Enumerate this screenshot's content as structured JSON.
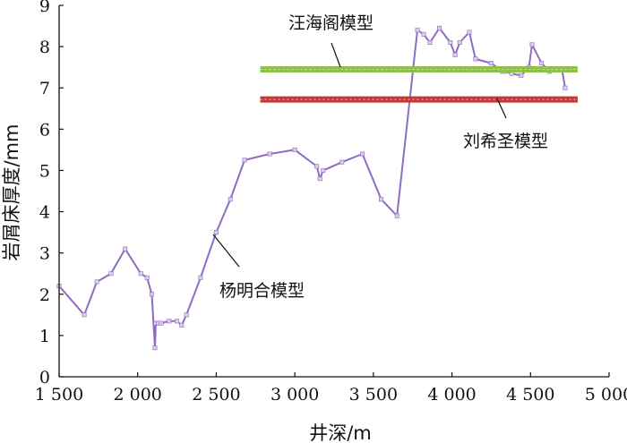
{
  "chart_data": {
    "type": "line",
    "title": "",
    "xlabel": "井深/m",
    "ylabel": "岩屑床厚度/mm",
    "xlim": [
      1500,
      5000
    ],
    "ylim": [
      0,
      9
    ],
    "grid": false,
    "x_ticks": [
      1500,
      2000,
      2500,
      3000,
      3500,
      4000,
      4500,
      5000
    ],
    "x_tick_labels": [
      "1 500",
      "2 000",
      "2 500",
      "3 000",
      "3 500",
      "4 000",
      "4 500",
      "5 000"
    ],
    "y_ticks": [
      0,
      1,
      2,
      3,
      4,
      5,
      6,
      7,
      8,
      9
    ],
    "y_tick_labels": [
      "0",
      "1",
      "2",
      "3",
      "4",
      "5",
      "6",
      "7",
      "8",
      "9"
    ],
    "series": [
      {
        "name": "杨明合模型",
        "color": "#8e6cc0",
        "x": [
          1500,
          1660,
          1740,
          1830,
          1920,
          2020,
          2060,
          2090,
          2110,
          2115,
          2130,
          2150,
          2200,
          2250,
          2280,
          2310,
          2400,
          2500,
          2590,
          2680,
          2840,
          3000,
          3140,
          3160,
          3180,
          3300,
          3430,
          3550,
          3650,
          3780,
          3820,
          3860,
          3920,
          3990,
          4020,
          4050,
          4110,
          4150,
          4250,
          4320,
          4340,
          4380,
          4440,
          4490,
          4510,
          4570,
          4620,
          4700,
          4720
        ],
        "y": [
          2.2,
          1.5,
          2.3,
          2.5,
          3.1,
          2.5,
          2.4,
          2.0,
          0.7,
          1.3,
          1.3,
          1.3,
          1.35,
          1.35,
          1.25,
          1.5,
          2.4,
          3.5,
          4.3,
          5.25,
          5.4,
          5.5,
          5.1,
          4.8,
          5.0,
          5.2,
          5.4,
          4.3,
          3.9,
          8.4,
          8.3,
          8.1,
          8.45,
          8.1,
          7.8,
          8.1,
          8.35,
          7.7,
          7.6,
          7.4,
          7.4,
          7.35,
          7.3,
          7.5,
          8.05,
          7.6,
          7.4,
          7.45,
          7.0
        ]
      },
      {
        "name": "汪海阁模型",
        "color": "#8fc04a",
        "x": [
          2780,
          4800
        ],
        "y": [
          7.45,
          7.45
        ]
      },
      {
        "name": "刘希圣模型",
        "color": "#c03a38",
        "x": [
          2780,
          4800
        ],
        "y": [
          6.72,
          6.72
        ]
      }
    ]
  }
}
